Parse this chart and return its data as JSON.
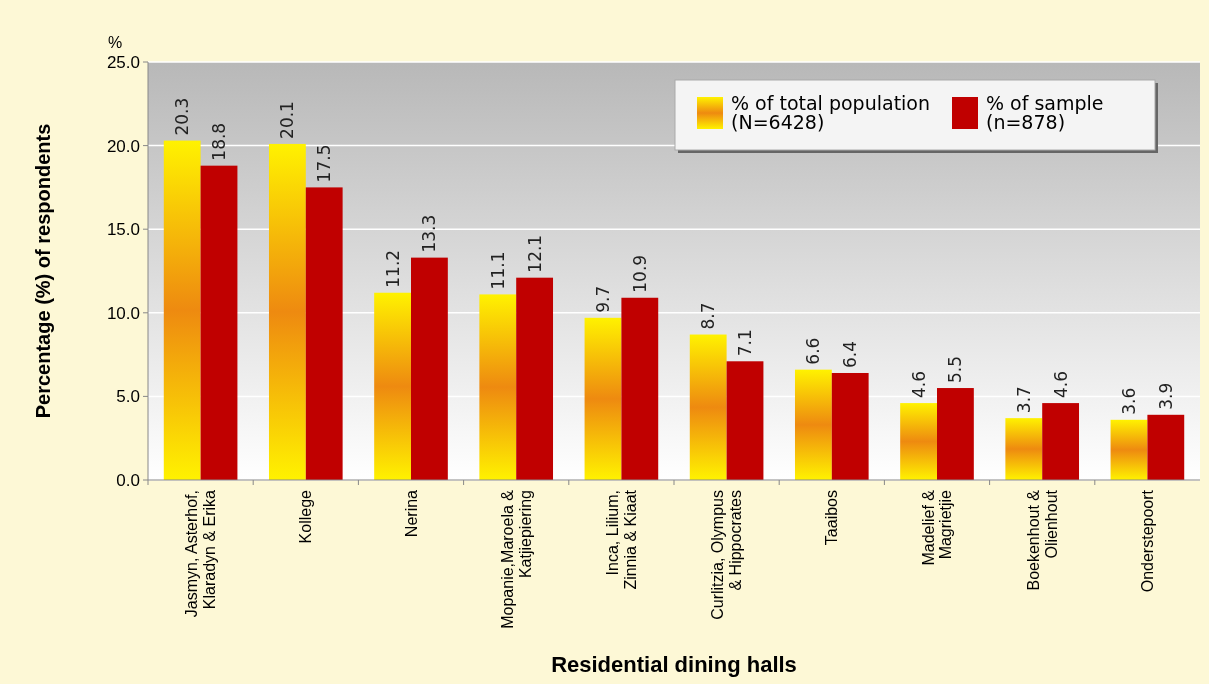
{
  "chart_data": {
    "type": "bar",
    "xlabel": "Residential dining halls",
    "ylabel": "Percentage (%) of respondents",
    "annotations": [
      "%"
    ],
    "categories": [
      "Jasmyn, Asterhof,\nKlaradyn &  Erika",
      "Kollege",
      "Nerina",
      "Mopanie,Maroela &\nKatjiepiering",
      "Inca, Lilium,\nZinnia & Kiaat",
      "Curlitzia, Olympus\n& Hippocrates",
      "Taaibos",
      "Madelief &\nMagrietjie",
      "Boekenhout &\nOlienhout",
      "Onderstepoort"
    ],
    "series": [
      {
        "name": "% of total population\n(N=6428)",
        "color": "#ee8a10",
        "values": [
          20.3,
          20.1,
          11.2,
          11.1,
          9.7,
          8.7,
          6.6,
          4.6,
          3.7,
          3.6
        ]
      },
      {
        "name": "% of sample\n(n=878)",
        "color": "#c00000",
        "values": [
          18.8,
          17.5,
          13.3,
          12.1,
          10.9,
          7.1,
          6.4,
          5.5,
          4.6,
          3.9
        ]
      }
    ],
    "ylim": [
      0,
      25
    ],
    "yticks": [
      {
        "value": 0,
        "label": "0.0"
      },
      {
        "value": 5,
        "label": "5.0"
      },
      {
        "value": 10,
        "label": "10.0"
      },
      {
        "value": 15,
        "label": "15.0"
      },
      {
        "value": 20,
        "label": "20.0"
      },
      {
        "value": 25,
        "label": "25.0"
      }
    ],
    "grid": "y",
    "legend": "top right",
    "data_labels": true
  }
}
